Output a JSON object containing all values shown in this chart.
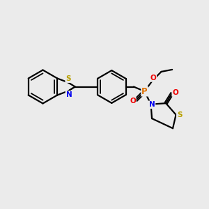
{
  "background_color": "#ebebeb",
  "bond_color": "#000000",
  "lw": 1.6,
  "lw_inner": 1.3,
  "colors": {
    "S": "#b8a000",
    "N": "#0000ee",
    "O": "#ee0000",
    "P": "#e07000",
    "C": "#000000",
    "bg": "#ebebeb"
  },
  "font_size_atom": 7.5,
  "fig_bg": "#ebebeb"
}
